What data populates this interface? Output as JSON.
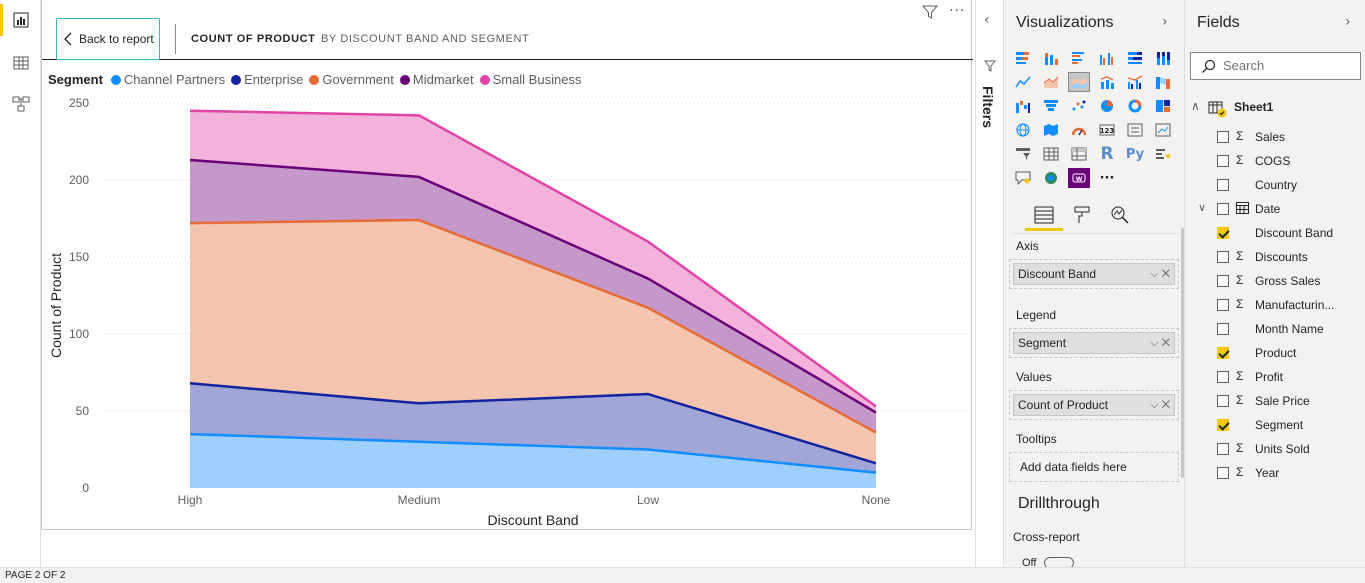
{
  "left_nav": {
    "items": [
      {
        "icon": "report-view-icon",
        "active": true
      },
      {
        "icon": "data-view-icon",
        "active": false
      },
      {
        "icon": "model-view-icon",
        "active": false
      }
    ]
  },
  "focus_header": {
    "back_label": "Back to report",
    "title": "COUNT OF PRODUCT",
    "subtitle": "BY DISCOUNT BAND AND SEGMENT"
  },
  "footer": {
    "page_indicator": "PAGE 2 OF 2"
  },
  "filters_pane": {
    "label": "Filters"
  },
  "visualizations_pane": {
    "title": "Visualizations",
    "wells": {
      "axis_label": "Axis",
      "axis_field": "Discount Band",
      "legend_label": "Legend",
      "legend_field": "Segment",
      "values_label": "Values",
      "values_field": "Count of Product",
      "tooltips_label": "Tooltips",
      "tooltips_placeholder": "Add data fields here"
    },
    "drillthrough": {
      "title": "Drillthrough",
      "cross_report_label": "Cross-report",
      "toggle_state": "Off"
    }
  },
  "fields_pane": {
    "title": "Fields",
    "search_placeholder": "Search",
    "table_name": "Sheet1",
    "fields": [
      {
        "name": "Sales",
        "sigma": true,
        "checked": false,
        "expandable": false,
        "calendar": false
      },
      {
        "name": "COGS",
        "sigma": true,
        "checked": false,
        "expandable": false,
        "calendar": false
      },
      {
        "name": "Country",
        "sigma": false,
        "checked": false,
        "expandable": false,
        "calendar": false
      },
      {
        "name": "Date",
        "sigma": false,
        "checked": false,
        "expandable": true,
        "calendar": true
      },
      {
        "name": "Discount Band",
        "sigma": false,
        "checked": true,
        "expandable": false,
        "calendar": false
      },
      {
        "name": "Discounts",
        "sigma": true,
        "checked": false,
        "expandable": false,
        "calendar": false
      },
      {
        "name": "Gross Sales",
        "sigma": true,
        "checked": false,
        "expandable": false,
        "calendar": false
      },
      {
        "name": "Manufacturin...",
        "sigma": true,
        "checked": false,
        "expandable": false,
        "calendar": false
      },
      {
        "name": "Month Name",
        "sigma": false,
        "checked": false,
        "expandable": false,
        "calendar": false
      },
      {
        "name": "Product",
        "sigma": false,
        "checked": true,
        "expandable": false,
        "calendar": false
      },
      {
        "name": "Profit",
        "sigma": true,
        "checked": false,
        "expandable": false,
        "calendar": false
      },
      {
        "name": "Sale Price",
        "sigma": true,
        "checked": false,
        "expandable": false,
        "calendar": false
      },
      {
        "name": "Segment",
        "sigma": false,
        "checked": true,
        "expandable": false,
        "calendar": false
      },
      {
        "name": "Units Sold",
        "sigma": true,
        "checked": false,
        "expandable": false,
        "calendar": false
      },
      {
        "name": "Year",
        "sigma": true,
        "checked": false,
        "expandable": false,
        "calendar": false
      }
    ]
  },
  "chart_data": {
    "type": "area",
    "stacked": true,
    "title": "",
    "xlabel": "Discount Band",
    "ylabel": "Count of Product",
    "ylim": [
      0,
      250
    ],
    "yticks": [
      0,
      50,
      100,
      150,
      200,
      250
    ],
    "grid": true,
    "legend_title": "Segment",
    "legend_position": "top-left",
    "categories": [
      "High",
      "Medium",
      "Low",
      "None"
    ],
    "series": [
      {
        "name": "Channel Partners",
        "values": [
          35,
          30,
          25,
          10
        ],
        "line_color": "#118dff",
        "fill_color": "#9fd0fd"
      },
      {
        "name": "Enterprise",
        "values": [
          33,
          25,
          36,
          6
        ],
        "line_color": "#12239e",
        "fill_color": "#a1a6d6"
      },
      {
        "name": "Government",
        "values": [
          104,
          119,
          56,
          20
        ],
        "line_color": "#e66c37",
        "fill_color": "#f3c4ae"
      },
      {
        "name": "Midmarket",
        "values": [
          41,
          28,
          19,
          13
        ],
        "line_color": "#6b007b",
        "fill_color": "#c498c8"
      },
      {
        "name": "Small Business",
        "values": [
          32,
          40,
          24,
          4
        ],
        "line_color": "#e044a7",
        "fill_color": "#f2b3db"
      }
    ]
  }
}
